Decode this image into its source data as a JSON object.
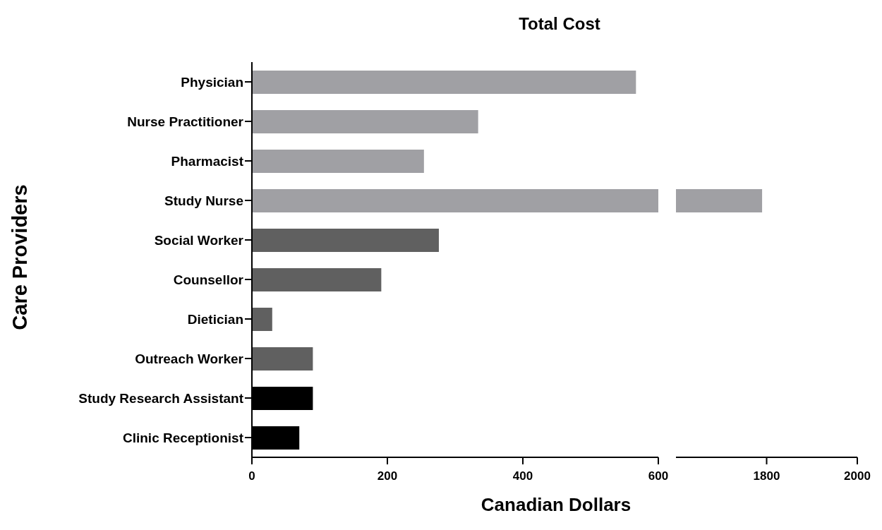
{
  "chart_data": [
    {
      "type": "bar",
      "orientation": "horizontal",
      "title": "Total Cost",
      "xlabel": "Canadian Dollars",
      "ylabel": "Care Providers",
      "categories": [
        "Physician",
        "Nurse Practitioner",
        "Pharmacist",
        "Study Nurse",
        "Social Worker",
        "Counsellor",
        "Dietician",
        "Outreach Worker",
        "Study Research Assistant",
        "Clinic Receptionist"
      ],
      "values": [
        567,
        334,
        254,
        600,
        276,
        191,
        30,
        90,
        90,
        70
      ],
      "colors": [
        "#a0a0a4",
        "#a0a0a4",
        "#a0a0a4",
        "#a0a0a4",
        "#606060",
        "#606060",
        "#606060",
        "#606060",
        "#000000",
        "#000000"
      ],
      "xlim": [
        0,
        600
      ],
      "xticks": [
        0,
        200,
        400,
        600
      ]
    },
    {
      "type": "bar",
      "orientation": "horizontal",
      "values": [
        null,
        null,
        null,
        1790,
        null,
        null,
        null,
        null,
        null,
        null
      ],
      "color": "#a0a0a4",
      "xlim": [
        1600,
        2000
      ],
      "xticks": [
        1800,
        2000
      ],
      "tick_labels": "x"
    }
  ]
}
